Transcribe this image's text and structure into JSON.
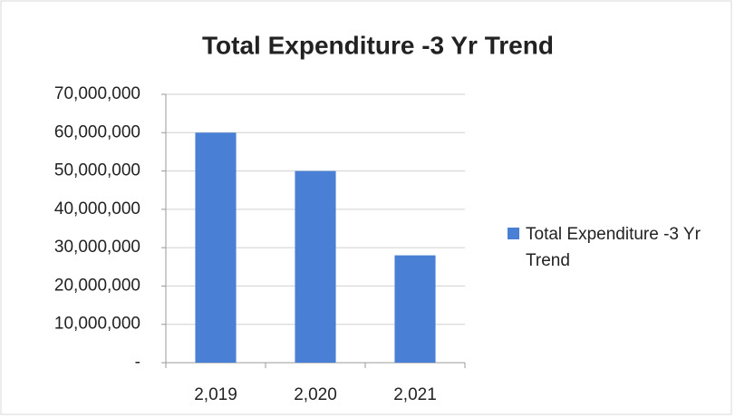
{
  "chart_data": {
    "type": "bar",
    "title": "Total Expenditure -3 Yr Trend",
    "categories": [
      "2,019",
      "2,020",
      "2,021"
    ],
    "series": [
      {
        "name": "Total Expenditure -3 Yr Trend",
        "color": "#4a7fd6",
        "values": [
          60000000,
          50000000,
          28000000
        ]
      }
    ],
    "ylim": [
      0,
      70000000
    ],
    "yticks": [
      {
        "value": 0,
        "label": "-"
      },
      {
        "value": 10000000,
        "label": "10,000,000"
      },
      {
        "value": 20000000,
        "label": "20,000,000"
      },
      {
        "value": 30000000,
        "label": "30,000,000"
      },
      {
        "value": 40000000,
        "label": "40,000,000"
      },
      {
        "value": 50000000,
        "label": "50,000,000"
      },
      {
        "value": 60000000,
        "label": "60,000,000"
      },
      {
        "value": 70000000,
        "label": "70,000,000"
      }
    ],
    "grid": true,
    "legend": "right"
  }
}
